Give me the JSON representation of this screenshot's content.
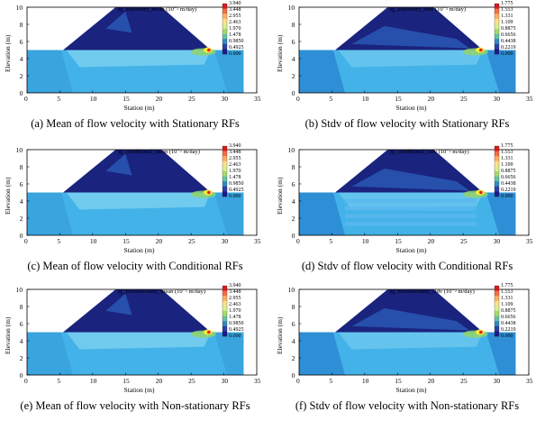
{
  "panels": [
    {
      "title": "|q|_stationary_mean (10⁻² m/day)",
      "caption": "(a)  Mean of flow velocity with Stationary RFs",
      "colorbar_values": [
        "3.940",
        "3.448",
        "2.955",
        "2.463",
        "1.970",
        "1.478",
        "0.9850",
        "0.4925",
        "0.000"
      ]
    },
    {
      "title": "|q|_stationary_stdv (10⁻² m/day)",
      "caption": "(b) Stdv of flow velocity with Stationary RFs",
      "colorbar_values": [
        "1.775",
        "1.553",
        "1.331",
        "1.109",
        "0.8875",
        "0.6656",
        "0.4438",
        "0.2219",
        "0.000"
      ]
    },
    {
      "title": "|q|_conditional_mean (10⁻² m/day)",
      "caption": "(c) Mean of flow velocity with Conditional RFs",
      "colorbar_values": [
        "3.940",
        "3.448",
        "2.955",
        "2.463",
        "1.970",
        "1.478",
        "0.9850",
        "0.4925",
        "0.000"
      ]
    },
    {
      "title": "|q|_conditional_stdv (10⁻² m/day)",
      "caption": "(d) Stdv of flow velocity with Conditional RFs",
      "colorbar_values": [
        "1.775",
        "1.553",
        "1.331",
        "1.109",
        "0.8875",
        "0.6656",
        "0.4438",
        "0.2219",
        "0.000"
      ]
    },
    {
      "title": "|q|_nonstationary_mean (10⁻² m/day)",
      "caption": "(e) Mean of flow velocity with Non-stationary RFs",
      "colorbar_values": [
        "3.940",
        "3.448",
        "2.955",
        "2.463",
        "1.970",
        "1.478",
        "0.9850",
        "0.4925",
        "0.000"
      ]
    },
    {
      "title": "|q|_nonstationary_stdv (10⁻² m/day)",
      "caption": "(f) Stdv of flow velocity with Non-stationary RFs",
      "colorbar_values": [
        "1.775",
        "1.553",
        "1.331",
        "1.109",
        "0.8875",
        "0.6656",
        "0.4438",
        "0.2219",
        "0.000"
      ]
    }
  ],
  "axes": {
    "xlabel": "Station (m)",
    "ylabel": "Elevation (m)",
    "xticks": [
      "0",
      "5",
      "10",
      "15",
      "20",
      "25",
      "30",
      "35"
    ],
    "yticks": [
      "0",
      "2",
      "4",
      "6",
      "8",
      "10"
    ],
    "xlim": [
      0,
      35
    ],
    "ylim": [
      0,
      10
    ]
  },
  "colors": {
    "colorbar": [
      "#d7191c",
      "#f46d43",
      "#fdae61",
      "#fee08b",
      "#d9ef8b",
      "#a6d96a",
      "#66c2a5",
      "#3288bd",
      "#2b3fa8",
      "#1a1a8c"
    ],
    "foundation": "#43b2e8",
    "foundation_light": "#7fd3f2",
    "dam_body": "#1a237e",
    "dam_light": "#2a5ab8",
    "hotspot_green": "#8fd46a",
    "hotspot_yellow": "#f6e93a",
    "hotspot_red": "#e0202a"
  },
  "chart_data": [
    {
      "type": "heatmap",
      "title": "|q|_stationary_mean (10⁻² m/day)",
      "xlabel": "Station (m)",
      "ylabel": "Elevation (m)",
      "xlim": [
        0,
        35
      ],
      "ylim": [
        0,
        10
      ],
      "colorbar": [
        "3.940",
        "3.448",
        "2.955",
        "2.463",
        "1.970",
        "1.478",
        "0.9850",
        "0.4925",
        "0.000"
      ]
    },
    {
      "type": "heatmap",
      "title": "|q|_stationary_stdv (10⁻² m/day)",
      "xlabel": "Station (m)",
      "ylabel": "Elevation (m)",
      "xlim": [
        0,
        35
      ],
      "ylim": [
        0,
        10
      ],
      "colorbar": [
        "1.775",
        "1.553",
        "1.331",
        "1.109",
        "0.8875",
        "0.6656",
        "0.4438",
        "0.2219",
        "0.000"
      ]
    },
    {
      "type": "heatmap",
      "title": "|q|_conditional_mean (10⁻² m/day)",
      "xlabel": "Station (m)",
      "ylabel": "Elevation (m)",
      "xlim": [
        0,
        35
      ],
      "ylim": [
        0,
        10
      ],
      "colorbar": [
        "3.940",
        "3.448",
        "2.955",
        "2.463",
        "1.970",
        "1.478",
        "0.9850",
        "0.4925",
        "0.000"
      ]
    },
    {
      "type": "heatmap",
      "title": "|q|_conditional_stdv (10⁻² m/day)",
      "xlabel": "Station (m)",
      "ylabel": "Elevation (m)",
      "xlim": [
        0,
        35
      ],
      "ylim": [
        0,
        10
      ],
      "colorbar": [
        "1.775",
        "1.553",
        "1.331",
        "1.109",
        "0.8875",
        "0.6656",
        "0.4438",
        "0.2219",
        "0.000"
      ]
    },
    {
      "type": "heatmap",
      "title": "|q|_nonstationary_mean (10⁻² m/day)",
      "xlabel": "Station (m)",
      "ylabel": "Elevation (m)",
      "xlim": [
        0,
        35
      ],
      "ylim": [
        0,
        10
      ],
      "colorbar": [
        "3.940",
        "3.448",
        "2.955",
        "2.463",
        "1.970",
        "1.478",
        "0.9850",
        "0.4925",
        "0.000"
      ]
    },
    {
      "type": "heatmap",
      "title": "|q|_nonstationary_stdv (10⁻² m/day)",
      "xlabel": "Station (m)",
      "ylabel": "Elevation (m)",
      "xlim": [
        0,
        35
      ],
      "ylim": [
        0,
        10
      ],
      "colorbar": [
        "1.775",
        "1.553",
        "1.331",
        "1.109",
        "0.8875",
        "0.6656",
        "0.4438",
        "0.2219",
        "0.000"
      ]
    }
  ]
}
